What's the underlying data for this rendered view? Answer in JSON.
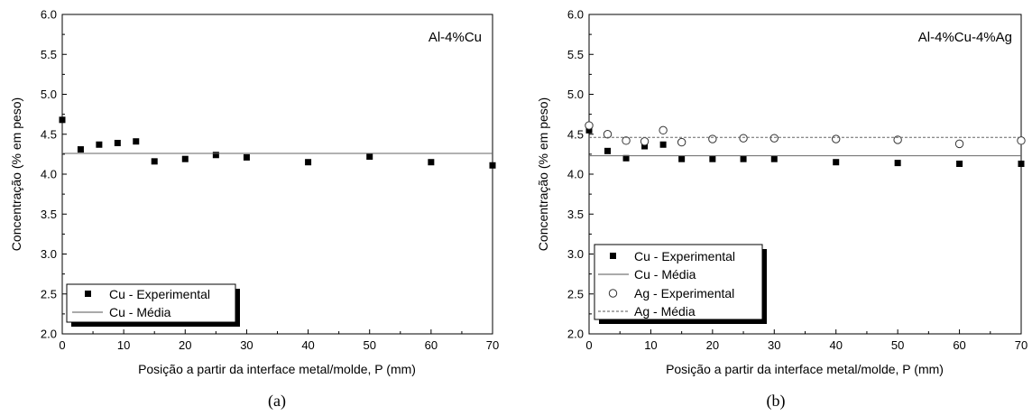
{
  "chart_data": [
    {
      "type": "scatter",
      "caption": "(a)",
      "annotation": "Al-4%Cu",
      "xlabel": "Posição a partir da interface metal/molde, P (mm)",
      "ylabel": "Concentração (% em peso)",
      "xlim": [
        0,
        70
      ],
      "ylim": [
        2.0,
        6.0
      ],
      "xticks": [
        "0",
        "10",
        "20",
        "30",
        "40",
        "50",
        "60",
        "70"
      ],
      "yticks": [
        "2.0",
        "2.5",
        "3.0",
        "3.5",
        "4.0",
        "4.5",
        "5.0",
        "5.5",
        "6.0"
      ],
      "grid": false,
      "legend_position": "bottom-left",
      "series": [
        {
          "name": "Cu - Experimental",
          "kind": "points",
          "marker": "filled-square",
          "x": [
            0,
            3,
            6,
            9,
            12,
            15,
            20,
            25,
            30,
            40,
            50,
            60,
            70
          ],
          "y": [
            4.68,
            4.31,
            4.37,
            4.39,
            4.41,
            4.16,
            4.19,
            4.24,
            4.21,
            4.15,
            4.22,
            4.15,
            4.11
          ]
        },
        {
          "name": "Cu - Média",
          "kind": "hline",
          "style": "solid",
          "y": 4.26
        }
      ]
    },
    {
      "type": "scatter",
      "caption": "(b)",
      "annotation": "Al-4%Cu-4%Ag",
      "xlabel": "Posição a partir da interface metal/molde, P (mm)",
      "ylabel": "Concentração (% em peso)",
      "xlim": [
        0,
        70
      ],
      "ylim": [
        2.0,
        6.0
      ],
      "xticks": [
        "0",
        "10",
        "20",
        "30",
        "40",
        "50",
        "60",
        "70"
      ],
      "yticks": [
        "2.0",
        "2.5",
        "3.0",
        "3.5",
        "4.0",
        "4.5",
        "5.0",
        "5.5",
        "6.0"
      ],
      "grid": false,
      "legend_position": "bottom-left",
      "series": [
        {
          "name": "Cu - Experimental",
          "kind": "points",
          "marker": "filled-square",
          "x": [
            0,
            3,
            6,
            9,
            12,
            15,
            20,
            25,
            30,
            40,
            50,
            60,
            70
          ],
          "y": [
            4.55,
            4.29,
            4.2,
            4.35,
            4.37,
            4.19,
            4.19,
            4.19,
            4.19,
            4.15,
            4.14,
            4.13,
            4.13
          ]
        },
        {
          "name": "Cu - Média",
          "kind": "hline",
          "style": "solid",
          "y": 4.23
        },
        {
          "name": "Ag - Experimental",
          "kind": "points",
          "marker": "open-circle",
          "x": [
            0,
            3,
            6,
            9,
            12,
            15,
            20,
            25,
            30,
            40,
            50,
            60,
            70
          ],
          "y": [
            4.61,
            4.5,
            4.42,
            4.41,
            4.55,
            4.4,
            4.44,
            4.45,
            4.45,
            4.44,
            4.43,
            4.38,
            4.42
          ]
        },
        {
          "name": "Ag - Média",
          "kind": "hline",
          "style": "dashed",
          "y": 4.46
        }
      ]
    }
  ]
}
